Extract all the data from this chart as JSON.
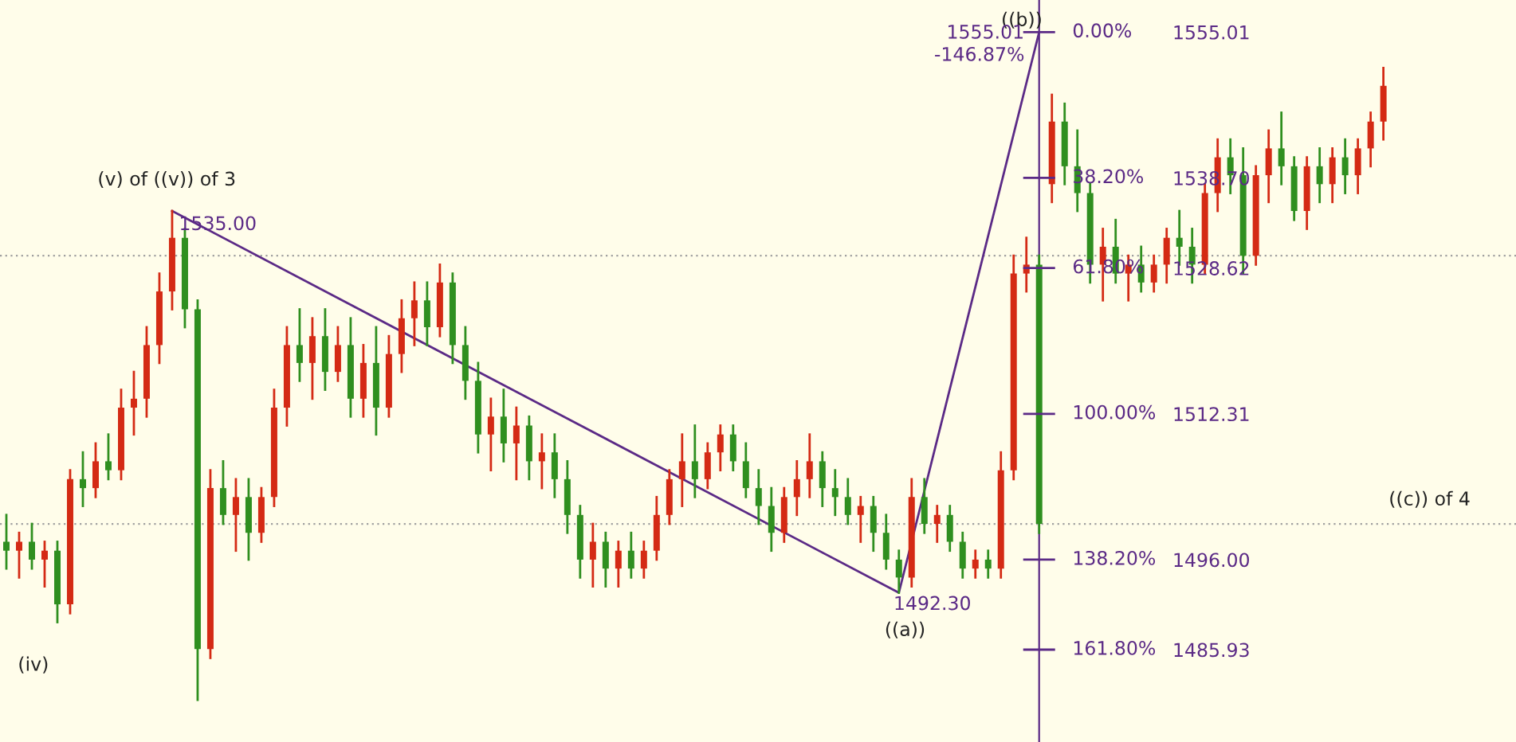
{
  "chart_data": {
    "type": "candlestick",
    "categories": [
      null,
      null,
      null,
      null,
      null,
      null,
      null,
      null,
      null,
      null,
      null,
      null,
      null,
      null,
      null,
      null,
      null,
      null,
      null,
      null,
      null,
      null,
      null,
      null,
      null,
      null,
      null,
      null,
      null,
      null,
      null,
      null,
      null,
      null,
      null,
      null,
      null,
      null,
      null,
      null,
      null,
      null,
      null,
      null,
      null,
      null,
      null,
      null,
      null,
      null,
      null,
      null,
      null,
      null,
      null,
      null,
      null,
      null,
      null,
      null,
      null,
      null,
      null,
      null,
      null,
      null,
      null,
      null,
      null,
      null,
      null,
      null,
      null,
      null,
      null,
      null,
      null,
      null,
      null,
      null,
      null,
      null,
      null,
      null,
      null,
      null,
      null,
      null,
      null,
      null,
      null,
      null,
      null,
      null,
      null,
      null,
      null,
      null,
      null,
      null,
      null,
      null,
      null,
      null,
      null,
      null,
      null,
      null,
      null
    ],
    "ohlc": [
      [
        1498,
        1501,
        1495,
        1497
      ],
      [
        1497,
        1499,
        1494,
        1498
      ],
      [
        1498,
        1500,
        1495,
        1496
      ],
      [
        1496,
        1498,
        1493,
        1497
      ],
      [
        1497,
        1498,
        1489,
        1491
      ],
      [
        1491,
        1506,
        1490,
        1505
      ],
      [
        1505,
        1508,
        1502,
        1504
      ],
      [
        1504,
        1509,
        1503,
        1507
      ],
      [
        1507,
        1510,
        1505,
        1506
      ],
      [
        1506,
        1515,
        1505,
        1513
      ],
      [
        1513,
        1517,
        1510,
        1514
      ],
      [
        1514,
        1522,
        1512,
        1520
      ],
      [
        1520,
        1528,
        1518,
        1526
      ],
      [
        1526,
        1535,
        1524,
        1532
      ],
      [
        1532,
        1533,
        1522,
        1524
      ],
      [
        1524,
        1525,
        1480.3,
        1486
      ],
      [
        1486,
        1506,
        1485,
        1504
      ],
      [
        1504,
        1507,
        1500,
        1501
      ],
      [
        1501,
        1505,
        1497,
        1503
      ],
      [
        1503,
        1505,
        1496,
        1499
      ],
      [
        1499,
        1504,
        1498,
        1503
      ],
      [
        1503,
        1515,
        1502,
        1513
      ],
      [
        1513,
        1522,
        1511,
        1520
      ],
      [
        1520,
        1524,
        1516,
        1518
      ],
      [
        1518,
        1523,
        1514,
        1521
      ],
      [
        1521,
        1524,
        1515,
        1517
      ],
      [
        1517,
        1522,
        1516,
        1520
      ],
      [
        1520,
        1523,
        1512,
        1514
      ],
      [
        1514,
        1520,
        1512,
        1518
      ],
      [
        1518,
        1522,
        1510,
        1513
      ],
      [
        1513,
        1521,
        1512,
        1519
      ],
      [
        1519,
        1525,
        1517,
        1523
      ],
      [
        1523,
        1527,
        1520,
        1525
      ],
      [
        1525,
        1527,
        1520,
        1522
      ],
      [
        1522,
        1529,
        1521,
        1527
      ],
      [
        1527,
        1528,
        1518,
        1520
      ],
      [
        1520,
        1522,
        1514,
        1516
      ],
      [
        1516,
        1518,
        1508,
        1510
      ],
      [
        1510,
        1514,
        1506,
        1512
      ],
      [
        1512,
        1515,
        1507,
        1509
      ],
      [
        1509,
        1513,
        1505,
        1511
      ],
      [
        1511,
        1512,
        1505,
        1507
      ],
      [
        1507,
        1510,
        1504,
        1508
      ],
      [
        1508,
        1510,
        1503,
        1505
      ],
      [
        1505,
        1507,
        1499,
        1501
      ],
      [
        1501,
        1502,
        1494,
        1496
      ],
      [
        1496,
        1500,
        1493,
        1498
      ],
      [
        1498,
        1499,
        1493,
        1495
      ],
      [
        1495,
        1498,
        1493,
        1497
      ],
      [
        1497,
        1499,
        1494,
        1495
      ],
      [
        1495,
        1498,
        1494,
        1497
      ],
      [
        1497,
        1503,
        1496,
        1501
      ],
      [
        1501,
        1506,
        1500,
        1505
      ],
      [
        1505,
        1510,
        1502,
        1507
      ],
      [
        1507,
        1511,
        1503,
        1505
      ],
      [
        1505,
        1509,
        1504,
        1508
      ],
      [
        1508,
        1511,
        1506,
        1510
      ],
      [
        1510,
        1511,
        1506,
        1507
      ],
      [
        1507,
        1509,
        1503,
        1504
      ],
      [
        1504,
        1506,
        1500,
        1502
      ],
      [
        1502,
        1504,
        1497,
        1499
      ],
      [
        1499,
        1504,
        1498,
        1503
      ],
      [
        1503,
        1507,
        1501,
        1505
      ],
      [
        1505,
        1510,
        1503,
        1507
      ],
      [
        1507,
        1508,
        1502,
        1504
      ],
      [
        1504,
        1506,
        1501,
        1503
      ],
      [
        1503,
        1505,
        1500,
        1501
      ],
      [
        1501,
        1503,
        1498,
        1502
      ],
      [
        1502,
        1503,
        1497,
        1499
      ],
      [
        1499,
        1501,
        1495,
        1496
      ],
      [
        1496,
        1497,
        1492.3,
        1494
      ],
      [
        1494,
        1505,
        1493,
        1503
      ],
      [
        1503,
        1505,
        1499,
        1500
      ],
      [
        1500,
        1502,
        1498,
        1501
      ],
      [
        1501,
        1502,
        1497,
        1498
      ],
      [
        1498,
        1499,
        1494,
        1495
      ],
      [
        1495,
        1497,
        1494,
        1496
      ],
      [
        1496,
        1497,
        1494,
        1495
      ],
      [
        1495,
        1508,
        1494,
        1506
      ],
      [
        1506,
        1530,
        1505,
        1528
      ],
      [
        1528,
        1532,
        1526,
        1529
      ],
      [
        1529,
        1530,
        1499,
        1500
      ],
      [
        1538,
        1548,
        1536,
        1545
      ],
      [
        1545,
        1547,
        1538,
        1540
      ],
      [
        1540,
        1544,
        1535,
        1537
      ],
      [
        1537,
        1538,
        1527,
        1529
      ],
      [
        1529,
        1533,
        1525,
        1531
      ],
      [
        1531,
        1534,
        1527,
        1528
      ],
      [
        1528,
        1530,
        1525,
        1529
      ],
      [
        1529,
        1531,
        1526,
        1527
      ],
      [
        1527,
        1530,
        1526,
        1529
      ],
      [
        1529,
        1533,
        1527,
        1532
      ],
      [
        1532,
        1535,
        1529,
        1531
      ],
      [
        1531,
        1533,
        1527,
        1529
      ],
      [
        1529,
        1538,
        1528,
        1537
      ],
      [
        1537,
        1543,
        1535,
        1541
      ],
      [
        1541,
        1543,
        1537,
        1539
      ],
      [
        1539,
        1542,
        1528,
        1530
      ],
      [
        1530,
        1540,
        1529,
        1539
      ],
      [
        1539,
        1544,
        1536,
        1542
      ],
      [
        1542,
        1546,
        1538,
        1540
      ],
      [
        1540,
        1541,
        1534,
        1535
      ],
      [
        1535,
        1541,
        1533,
        1540
      ],
      [
        1540,
        1542,
        1536,
        1538
      ],
      [
        1538,
        1542,
        1536,
        1541
      ],
      [
        1541,
        1543,
        1537,
        1539
      ],
      [
        1539,
        1543,
        1537,
        1542
      ],
      [
        1542,
        1546,
        1540,
        1545
      ],
      [
        1545,
        1551,
        1543,
        1549
      ]
    ],
    "colors": [
      "#2f8f1f",
      "#d42a14",
      "#2f8f1f",
      "#d42a14",
      "#2f8f1f",
      "#d42a14",
      "#2f8f1f",
      "#d42a14",
      "#2f8f1f",
      "#d42a14",
      "#d42a14",
      "#d42a14",
      "#d42a14",
      "#d42a14",
      "#2f8f1f",
      "#2f8f1f",
      "#d42a14",
      "#2f8f1f",
      "#d42a14",
      "#2f8f1f",
      "#d42a14",
      "#d42a14",
      "#d42a14",
      "#2f8f1f",
      "#d42a14",
      "#2f8f1f",
      "#d42a14",
      "#2f8f1f",
      "#d42a14",
      "#2f8f1f",
      "#d42a14",
      "#d42a14",
      "#d42a14",
      "#2f8f1f",
      "#d42a14",
      "#2f8f1f",
      "#2f8f1f",
      "#2f8f1f",
      "#d42a14",
      "#2f8f1f",
      "#d42a14",
      "#2f8f1f",
      "#d42a14",
      "#2f8f1f",
      "#2f8f1f",
      "#2f8f1f",
      "#d42a14",
      "#2f8f1f",
      "#d42a14",
      "#2f8f1f",
      "#d42a14",
      "#d42a14",
      "#d42a14",
      "#d42a14",
      "#2f8f1f",
      "#d42a14",
      "#d42a14",
      "#2f8f1f",
      "#2f8f1f",
      "#2f8f1f",
      "#2f8f1f",
      "#d42a14",
      "#d42a14",
      "#d42a14",
      "#2f8f1f",
      "#2f8f1f",
      "#2f8f1f",
      "#d42a14",
      "#2f8f1f",
      "#2f8f1f",
      "#2f8f1f",
      "#d42a14",
      "#2f8f1f",
      "#d42a14",
      "#2f8f1f",
      "#2f8f1f",
      "#d42a14",
      "#2f8f1f",
      "#d42a14",
      "#d42a14",
      "#d42a14",
      "#2f8f1f",
      "#d42a14",
      "#2f8f1f",
      "#2f8f1f",
      "#2f8f1f",
      "#d42a14",
      "#2f8f1f",
      "#d42a14",
      "#2f8f1f",
      "#d42a14",
      "#d42a14",
      "#2f8f1f",
      "#2f8f1f",
      "#d42a14",
      "#d42a14",
      "#2f8f1f",
      "#2f8f1f",
      "#d42a14",
      "#d42a14",
      "#2f8f1f",
      "#2f8f1f",
      "#d42a14",
      "#2f8f1f",
      "#d42a14",
      "#2f8f1f",
      "#d42a14",
      "#d42a14",
      "#d42a14"
    ],
    "series": [
      {
        "type": "line",
        "color": "#5b2a86",
        "values": [
          null,
          null,
          null,
          null,
          null,
          null,
          null,
          null,
          null,
          null,
          null,
          null,
          null,
          1535.0,
          null,
          null,
          null,
          null,
          null,
          null,
          null,
          null,
          null,
          null,
          null,
          null,
          null,
          null,
          null,
          null,
          null,
          null,
          null,
          null,
          null,
          null,
          null,
          null,
          null,
          null,
          null,
          null,
          null,
          null,
          null,
          null,
          null,
          null,
          null,
          null,
          null,
          null,
          null,
          null,
          null,
          null,
          null,
          null,
          null,
          null,
          null,
          null,
          null,
          null,
          null,
          null,
          null,
          null,
          null,
          null,
          1492.3,
          null,
          null,
          null,
          null,
          null,
          null,
          null,
          null,
          null,
          null,
          1555.01,
          null,
          null,
          null,
          null,
          null,
          null,
          null,
          null,
          null,
          null,
          null,
          null,
          null,
          null,
          null,
          null,
          null,
          null,
          null,
          null,
          null,
          null,
          null,
          null,
          null,
          null,
          null
        ]
      }
    ],
    "ylim": [
      1475.6,
      1558.6
    ],
    "yticks": [
      1555.01,
      {
        "value": 1538.7,
        "label": "1538.70"
      },
      1528.62,
      1512.31,
      {
        "value": 1496.0,
        "label": "1496.00"
      },
      1485.93
    ],
    "ref_lines": [
      {
        "axis": "y",
        "value": 1530,
        "color": "#a0a0a0",
        "line_style": "dotted"
      },
      {
        "axis": "y",
        "value": 1500,
        "color": "#a0a0a0",
        "line_style": "dotted"
      }
    ],
    "annotations": [
      "(v) of ((v)) of 3",
      "1535.00",
      "(iv)",
      "1492.30",
      "((a))",
      "((b))",
      "1555.01",
      "-146.87%",
      "((c)) of 4",
      "0.00%",
      "38.20%",
      "61.80%",
      "100.00%",
      "138.20%",
      "161.80%"
    ]
  }
}
